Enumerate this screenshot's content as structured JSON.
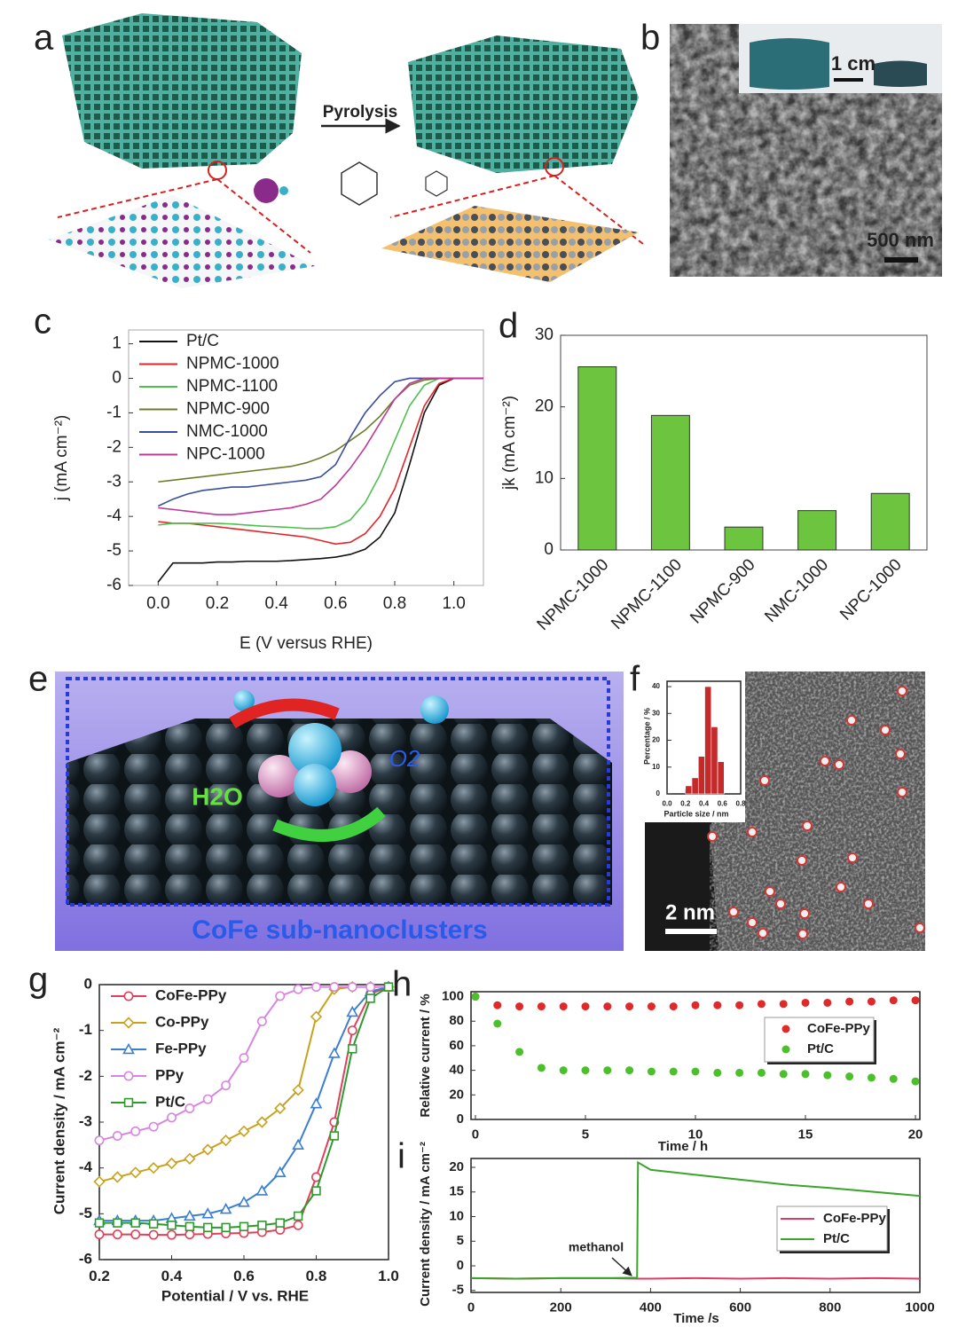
{
  "panels": {
    "a": {
      "label": "a",
      "arrow": "Pyrolysis"
    },
    "b": {
      "label": "b",
      "scale_inset": "1 cm",
      "scale": "500 nm"
    },
    "c": {
      "label": "c"
    },
    "d": {
      "label": "d"
    },
    "e": {
      "label": "e",
      "h2o": "H2O",
      "o2": "O2",
      "caption": "CoFe sub-nanoclusters"
    },
    "f": {
      "label": "f",
      "scale": "2 nm"
    },
    "g": {
      "label": "g"
    },
    "h": {
      "label": "h"
    },
    "i": {
      "label": "i"
    }
  },
  "chart_data": [
    {
      "type": "line",
      "xlabel": "E (V versus RHE)",
      "ylabel": "j (mA cm⁻²)",
      "x": [
        0,
        0.05,
        0.1,
        0.15,
        0.2,
        0.25,
        0.3,
        0.35,
        0.4,
        0.45,
        0.5,
        0.55,
        0.6,
        0.65,
        0.7,
        0.75,
        0.8,
        0.85,
        0.9,
        0.95,
        1.0,
        1.05,
        1.1
      ],
      "xlim": [
        -0.1,
        1.1
      ],
      "ylim": [
        -6,
        1.4
      ],
      "xticks": [
        {
          "value": 0,
          "label": "0.0"
        },
        0.2,
        0.4,
        0.6,
        0.8,
        {
          "value": 1,
          "label": "1.0"
        }
      ],
      "yticks": [
        -6,
        -5,
        -4,
        -3,
        -2,
        -1,
        0,
        1
      ],
      "legend": "upper left",
      "series": [
        {
          "name": "Pt/C",
          "color": "#111111",
          "values": [
            -5.9,
            -5.35,
            -5.35,
            -5.35,
            -5.32,
            -5.32,
            -5.3,
            -5.3,
            -5.3,
            -5.28,
            -5.25,
            -5.22,
            -5.18,
            -5.1,
            -4.95,
            -4.6,
            -3.9,
            -2.5,
            -1.0,
            -0.2,
            0,
            0,
            0
          ]
        },
        {
          "name": "NPMC-1000",
          "color": "#e0262a",
          "values": [
            -4.15,
            -4.2,
            -4.2,
            -4.25,
            -4.3,
            -4.35,
            -4.4,
            -4.45,
            -4.5,
            -4.55,
            -4.6,
            -4.7,
            -4.8,
            -4.75,
            -4.5,
            -4.0,
            -3.2,
            -2.0,
            -0.8,
            -0.15,
            0,
            0,
            0
          ]
        },
        {
          "name": "NPMC-1100",
          "color": "#4ec04e",
          "values": [
            -4.25,
            -4.2,
            -4.2,
            -4.2,
            -4.2,
            -4.22,
            -4.25,
            -4.28,
            -4.3,
            -4.32,
            -4.35,
            -4.35,
            -4.3,
            -4.1,
            -3.6,
            -2.8,
            -1.8,
            -0.8,
            -0.2,
            0,
            0,
            0,
            0
          ]
        },
        {
          "name": "NPMC-900",
          "color": "#6b7d2a",
          "values": [
            -3.0,
            -2.95,
            -2.9,
            -2.85,
            -2.8,
            -2.75,
            -2.7,
            -2.65,
            -2.6,
            -2.55,
            -2.45,
            -2.3,
            -2.1,
            -1.8,
            -1.5,
            -1.1,
            -0.6,
            -0.2,
            -0.05,
            0,
            0,
            0,
            0
          ]
        },
        {
          "name": "NMC-1000",
          "color": "#3a4e9c",
          "values": [
            -3.7,
            -3.5,
            -3.35,
            -3.25,
            -3.2,
            -3.15,
            -3.15,
            -3.1,
            -3.05,
            -3.0,
            -2.95,
            -2.85,
            -2.5,
            -1.7,
            -1.0,
            -0.5,
            -0.1,
            0,
            0,
            0,
            0,
            0,
            0
          ]
        },
        {
          "name": "NPC-1000",
          "color": "#c0379a",
          "values": [
            -3.75,
            -3.8,
            -3.85,
            -3.9,
            -3.95,
            -3.95,
            -3.9,
            -3.85,
            -3.8,
            -3.75,
            -3.65,
            -3.5,
            -3.1,
            -2.6,
            -2.0,
            -1.3,
            -0.6,
            -0.15,
            0,
            0,
            0,
            0,
            0
          ]
        }
      ]
    },
    {
      "type": "bar",
      "ylabel": "jk (mA cm⁻²)",
      "categories": [
        "NPMC-1000",
        "NPMC-1100",
        "NPMC-900",
        "NMC-1000",
        "NPC-1000"
      ],
      "values": [
        25.6,
        18.8,
        3.2,
        5.5,
        7.9
      ],
      "color": "#6dc43f",
      "ylim": [
        0,
        30
      ],
      "yticks": [
        0,
        10,
        20,
        30
      ]
    },
    {
      "type": "histogram",
      "xlabel": "Particle size / nm",
      "ylabel": "Percentage / %",
      "bins": [
        0.2,
        0.27,
        0.34,
        0.41,
        0.48,
        0.55,
        0.62
      ],
      "values": [
        3,
        6,
        14,
        40,
        25,
        12
      ],
      "color": "#c42a2a",
      "xlim": [
        0,
        0.8
      ],
      "ylim": [
        0,
        42
      ],
      "xticks": [
        {
          "value": 0,
          "label": "0.0"
        },
        0.2,
        0.4,
        0.6,
        0.8
      ],
      "yticks": [
        0,
        10,
        20,
        30,
        40
      ]
    },
    {
      "type": "line",
      "xlabel": "Potential / V vs. RHE",
      "ylabel": "Current density / mA cm⁻²",
      "x": [
        0.2,
        0.25,
        0.3,
        0.35,
        0.4,
        0.45,
        0.5,
        0.55,
        0.6,
        0.65,
        0.7,
        0.75,
        0.8,
        0.85,
        0.9,
        0.95,
        1.0
      ],
      "xlim": [
        0.2,
        1.0
      ],
      "ylim": [
        -6,
        0
      ],
      "xticks": [
        0.2,
        0.4,
        0.6,
        0.8,
        {
          "value": 1,
          "label": "1.0"
        }
      ],
      "yticks": [
        -6,
        -5,
        -4,
        -3,
        -2,
        -1,
        0
      ],
      "legend": "upper left",
      "series": [
        {
          "name": "CoFe-PPy",
          "color": "#e0405a",
          "marker": "circle",
          "values": [
            -5.45,
            -5.45,
            -5.45,
            -5.46,
            -5.46,
            -5.45,
            -5.44,
            -5.43,
            -5.42,
            -5.4,
            -5.35,
            -5.25,
            -4.2,
            -3.0,
            -1.0,
            -0.2,
            -0.05
          ]
        },
        {
          "name": "Co-PPy",
          "color": "#c9a21c",
          "marker": "diamond",
          "values": [
            -4.3,
            -4.2,
            -4.1,
            -4.0,
            -3.9,
            -3.8,
            -3.6,
            -3.4,
            -3.2,
            -3.0,
            -2.7,
            -2.3,
            -0.7,
            -0.1,
            -0.05,
            -0.05,
            -0.05
          ]
        },
        {
          "name": "Fe-PPy",
          "color": "#3c7fd0",
          "marker": "triangle",
          "values": [
            -5.15,
            -5.15,
            -5.15,
            -5.15,
            -5.1,
            -5.05,
            -5.0,
            -4.9,
            -4.75,
            -4.5,
            -4.1,
            -3.5,
            -2.6,
            -1.5,
            -0.6,
            -0.15,
            -0.05
          ]
        },
        {
          "name": "PPy",
          "color": "#d884e0",
          "marker": "circle",
          "values": [
            -3.4,
            -3.3,
            -3.2,
            -3.1,
            -2.9,
            -2.7,
            -2.5,
            -2.2,
            -1.6,
            -0.8,
            -0.25,
            -0.1,
            -0.05,
            -0.05,
            -0.05,
            -0.05,
            -0.05
          ]
        },
        {
          "name": "Pt/C",
          "color": "#2e9a2e",
          "marker": "square",
          "values": [
            -5.2,
            -5.2,
            -5.2,
            -5.22,
            -5.25,
            -5.28,
            -5.3,
            -5.3,
            -5.28,
            -5.25,
            -5.2,
            -5.05,
            -4.5,
            -3.3,
            -1.4,
            -0.3,
            -0.05
          ]
        }
      ]
    },
    {
      "type": "scatter",
      "xlabel": "Time / h",
      "ylabel": "Relative current / %",
      "x": [
        0,
        1,
        2,
        3,
        4,
        5,
        6,
        7,
        8,
        9,
        10,
        11,
        12,
        13,
        14,
        15,
        16,
        17,
        18,
        19,
        20
      ],
      "xlim": [
        -0.2,
        20.2
      ],
      "ylim": [
        0,
        104
      ],
      "xticks": [
        0,
        5,
        10,
        15,
        20
      ],
      "yticks": [
        0,
        20,
        40,
        60,
        80,
        100
      ],
      "legend": "center right",
      "series": [
        {
          "name": "CoFe-PPy",
          "color": "#e02a2a",
          "values": [
            100,
            93,
            92,
            92,
            92,
            92,
            92,
            92,
            92,
            92,
            93,
            93,
            93,
            94,
            94,
            95,
            95,
            96,
            96,
            97,
            97
          ]
        },
        {
          "name": "Pt/C",
          "color": "#4cc02a",
          "values": [
            100,
            78,
            55,
            42,
            40,
            40,
            40,
            40,
            39,
            39,
            39,
            38,
            38,
            38,
            37,
            37,
            36,
            35,
            34,
            33,
            31
          ]
        }
      ]
    },
    {
      "type": "line",
      "xlabel": "Time /s",
      "ylabel": "Current density / mA cm⁻²",
      "annotation": "methanol",
      "x": [
        0,
        100,
        200,
        300,
        370,
        372,
        400,
        500,
        600,
        700,
        800,
        900,
        1000
      ],
      "xlim": [
        0,
        1000
      ],
      "ylim": [
        -5.4,
        21.8
      ],
      "xticks": [
        0,
        200,
        400,
        600,
        800,
        1000
      ],
      "yticks": [
        -5,
        0,
        5,
        10,
        15,
        20
      ],
      "legend": "center right",
      "series": [
        {
          "name": "CoFe-PPy",
          "color": "#e03a6a",
          "values": [
            -2.5,
            -2.6,
            -2.5,
            -2.5,
            -2.6,
            -2.6,
            -2.6,
            -2.5,
            -2.6,
            -2.5,
            -2.6,
            -2.5,
            -2.6
          ]
        },
        {
          "name": "Pt/C",
          "color": "#3aa52a",
          "values": [
            -2.5,
            -2.6,
            -2.5,
            -2.5,
            -2.4,
            21,
            19.5,
            18.5,
            17.5,
            16.5,
            15.8,
            15,
            14.2
          ]
        }
      ]
    }
  ]
}
